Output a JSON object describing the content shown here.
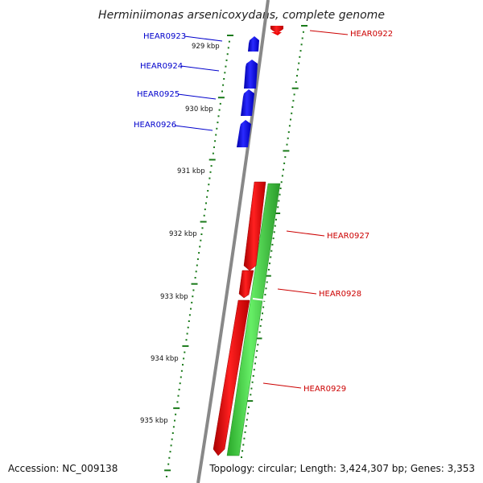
{
  "title": "Herminiimonas arsenicoxydans, complete genome",
  "footer": {
    "accession": "Accession: NC_009138",
    "topology": "Topology: circular; Length: 3,424,307 bp; Genes: 3,353"
  },
  "kbp_labels": [
    "929 kbp",
    "930 kbp",
    "931 kbp",
    "932 kbp",
    "933 kbp",
    "934 kbp",
    "935 kbp"
  ],
  "genes_forward": [
    {
      "name": "HEAR0923"
    },
    {
      "name": "HEAR0924"
    },
    {
      "name": "HEAR0925"
    },
    {
      "name": "HEAR0926"
    }
  ],
  "genes_reverse": [
    {
      "name": "HEAR0922"
    },
    {
      "name": "HEAR0927"
    },
    {
      "name": "HEAR0928"
    },
    {
      "name": "HEAR0929"
    }
  ],
  "colors": {
    "forward_cds": "#0000ee",
    "reverse_cds": "#ee0000",
    "rna_track": "#33cc33",
    "ticks": "#1a7a1a",
    "backbone": "#888888"
  }
}
